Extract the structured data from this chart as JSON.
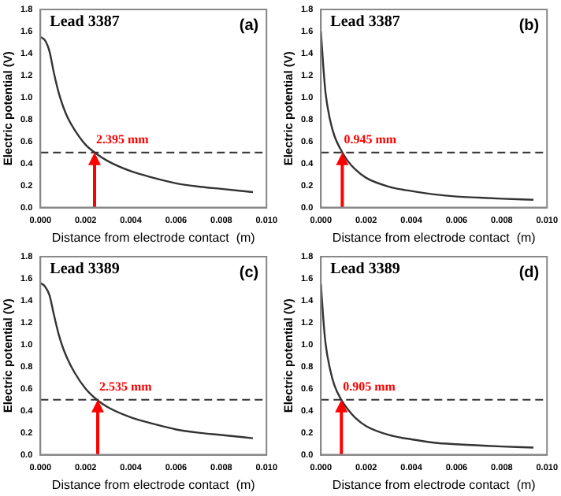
{
  "chart_data": [
    {
      "type": "line",
      "title": "Lead 3387",
      "subtitle": "(a)",
      "xlabel": "Distance from electrode contact  (m)",
      "ylabel": "Electric potential (V)",
      "xlim": [
        0,
        0.01
      ],
      "ylim": [
        0,
        1.8
      ],
      "xticks": [
        {
          "value": 0,
          "label": "0.000"
        },
        {
          "value": 0.002,
          "label": "0.002"
        },
        {
          "value": 0.004,
          "label": "0.004"
        },
        {
          "value": 0.006,
          "label": "0.006"
        },
        {
          "value": 0.008,
          "label": "0.008"
        },
        {
          "value": 0.01,
          "label": "0.010"
        }
      ],
      "yticks": [
        {
          "value": 0,
          "label": "0.0"
        },
        {
          "value": 0.2,
          "label": "0.2"
        },
        {
          "value": 0.4,
          "label": "0.4"
        },
        {
          "value": 0.6,
          "label": "0.6"
        },
        {
          "value": 0.8,
          "label": "0.8"
        },
        {
          "value": 1,
          "label": "1.0"
        },
        {
          "value": 1.2,
          "label": "1.2"
        },
        {
          "value": 1.4,
          "label": "1.4"
        },
        {
          "value": 1.6,
          "label": "1.6"
        },
        {
          "value": 1.8,
          "label": "1.8"
        }
      ],
      "x": [
        0,
        0.0002,
        0.0004,
        0.0006,
        0.0008,
        0.001,
        0.0012,
        0.0015,
        0.002,
        0.0024,
        0.003,
        0.004,
        0.005,
        0.006,
        0.007,
        0.008,
        0.0094
      ],
      "values": [
        1.55,
        1.52,
        1.42,
        1.22,
        1.05,
        0.92,
        0.82,
        0.71,
        0.57,
        0.5,
        0.42,
        0.33,
        0.27,
        0.22,
        0.19,
        0.17,
        0.14
      ],
      "color": "#333333",
      "marker": "none",
      "legend": false,
      "ref_lines": [
        {
          "axis": "y",
          "value": 0.5,
          "color": "#333333",
          "line_style": "dashed"
        }
      ],
      "annotations": [
        {
          "text": "2.395 mm",
          "x": 0.002395,
          "y": 0.5
        }
      ]
    },
    {
      "type": "line",
      "title": "Lead 3387",
      "subtitle": "(b)",
      "xlabel": "Distance from electrode contact  (m)",
      "ylabel": "Electric potential (V)",
      "xlim": [
        0,
        0.01
      ],
      "ylim": [
        0,
        1.8
      ],
      "xticks": [
        {
          "value": 0,
          "label": "0.000"
        },
        {
          "value": 0.002,
          "label": "0.002"
        },
        {
          "value": 0.004,
          "label": "0.004"
        },
        {
          "value": 0.006,
          "label": "0.006"
        },
        {
          "value": 0.008,
          "label": "0.008"
        },
        {
          "value": 0.01,
          "label": "0.010"
        }
      ],
      "yticks": [
        {
          "value": 0,
          "label": "0.0"
        },
        {
          "value": 0.2,
          "label": "0.2"
        },
        {
          "value": 0.4,
          "label": "0.4"
        },
        {
          "value": 0.6,
          "label": "0.6"
        },
        {
          "value": 0.8,
          "label": "0.8"
        },
        {
          "value": 1,
          "label": "1.0"
        },
        {
          "value": 1.2,
          "label": "1.2"
        },
        {
          "value": 1.4,
          "label": "1.4"
        },
        {
          "value": 1.6,
          "label": "1.6"
        },
        {
          "value": 1.8,
          "label": "1.8"
        }
      ],
      "x": [
        0,
        0.0001,
        0.0002,
        0.0004,
        0.0006,
        0.00095,
        0.0012,
        0.0015,
        0.002,
        0.003,
        0.004,
        0.005,
        0.006,
        0.007,
        0.008,
        0.0094
      ],
      "values": [
        1.6,
        1.3,
        1.05,
        0.8,
        0.65,
        0.5,
        0.42,
        0.35,
        0.27,
        0.19,
        0.15,
        0.12,
        0.1,
        0.09,
        0.08,
        0.07
      ],
      "color": "#333333",
      "marker": "none",
      "legend": false,
      "ref_lines": [
        {
          "axis": "y",
          "value": 0.5,
          "color": "#333333",
          "line_style": "dashed"
        }
      ],
      "annotations": [
        {
          "text": "0.945 mm",
          "x": 0.000945,
          "y": 0.5
        }
      ]
    },
    {
      "type": "line",
      "title": "Lead 3389",
      "subtitle": "(c)",
      "xlabel": "Distance from electrode contact  (m)",
      "ylabel": "Electric potential (V)",
      "xlim": [
        0,
        0.01
      ],
      "ylim": [
        0,
        1.8
      ],
      "xticks": [
        {
          "value": 0,
          "label": "0.000"
        },
        {
          "value": 0.002,
          "label": "0.002"
        },
        {
          "value": 0.004,
          "label": "0.004"
        },
        {
          "value": 0.006,
          "label": "0.006"
        },
        {
          "value": 0.008,
          "label": "0.008"
        },
        {
          "value": 0.01,
          "label": "0.010"
        }
      ],
      "yticks": [
        {
          "value": 0,
          "label": "0.0"
        },
        {
          "value": 0.2,
          "label": "0.2"
        },
        {
          "value": 0.4,
          "label": "0.4"
        },
        {
          "value": 0.6,
          "label": "0.6"
        },
        {
          "value": 0.8,
          "label": "0.8"
        },
        {
          "value": 1,
          "label": "1.0"
        },
        {
          "value": 1.2,
          "label": "1.2"
        },
        {
          "value": 1.4,
          "label": "1.4"
        },
        {
          "value": 1.6,
          "label": "1.6"
        },
        {
          "value": 1.8,
          "label": "1.8"
        }
      ],
      "x": [
        0,
        0.0002,
        0.0004,
        0.0006,
        0.0008,
        0.001,
        0.0012,
        0.0015,
        0.002,
        0.0025,
        0.003,
        0.004,
        0.005,
        0.006,
        0.007,
        0.008,
        0.0094
      ],
      "values": [
        1.56,
        1.53,
        1.45,
        1.27,
        1.1,
        0.97,
        0.87,
        0.75,
        0.6,
        0.5,
        0.43,
        0.34,
        0.28,
        0.23,
        0.2,
        0.18,
        0.15
      ],
      "color": "#333333",
      "marker": "none",
      "legend": false,
      "ref_lines": [
        {
          "axis": "y",
          "value": 0.5,
          "color": "#333333",
          "line_style": "dashed"
        }
      ],
      "annotations": [
        {
          "text": "2.535 mm",
          "x": 0.002535,
          "y": 0.5
        }
      ]
    },
    {
      "type": "line",
      "title": "Lead 3389",
      "subtitle": "(d)",
      "xlabel": "Distance from electrode contact  (m)",
      "ylabel": "Electric potential (V)",
      "xlim": [
        0,
        0.01
      ],
      "ylim": [
        0,
        1.8
      ],
      "xticks": [
        {
          "value": 0,
          "label": "0.000"
        },
        {
          "value": 0.002,
          "label": "0.002"
        },
        {
          "value": 0.004,
          "label": "0.004"
        },
        {
          "value": 0.006,
          "label": "0.006"
        },
        {
          "value": 0.008,
          "label": "0.008"
        },
        {
          "value": 0.01,
          "label": "0.010"
        }
      ],
      "yticks": [
        {
          "value": 0,
          "label": "0.0"
        },
        {
          "value": 0.2,
          "label": "0.2"
        },
        {
          "value": 0.4,
          "label": "0.4"
        },
        {
          "value": 0.6,
          "label": "0.6"
        },
        {
          "value": 0.8,
          "label": "0.8"
        },
        {
          "value": 1,
          "label": "1.0"
        },
        {
          "value": 1.2,
          "label": "1.2"
        },
        {
          "value": 1.4,
          "label": "1.4"
        },
        {
          "value": 1.6,
          "label": "1.6"
        },
        {
          "value": 1.8,
          "label": "1.8"
        }
      ],
      "x": [
        0,
        0.0001,
        0.0002,
        0.0004,
        0.0006,
        0.0009,
        0.0012,
        0.0015,
        0.002,
        0.003,
        0.004,
        0.005,
        0.006,
        0.007,
        0.008,
        0.0094
      ],
      "values": [
        1.55,
        1.25,
        1.02,
        0.78,
        0.63,
        0.5,
        0.41,
        0.34,
        0.26,
        0.18,
        0.14,
        0.11,
        0.095,
        0.085,
        0.075,
        0.065
      ],
      "color": "#333333",
      "marker": "none",
      "legend": false,
      "ref_lines": [
        {
          "axis": "y",
          "value": 0.5,
          "color": "#333333",
          "line_style": "dashed"
        }
      ],
      "annotations": [
        {
          "text": "0.905 mm",
          "x": 0.000905,
          "y": 0.5
        }
      ]
    }
  ]
}
